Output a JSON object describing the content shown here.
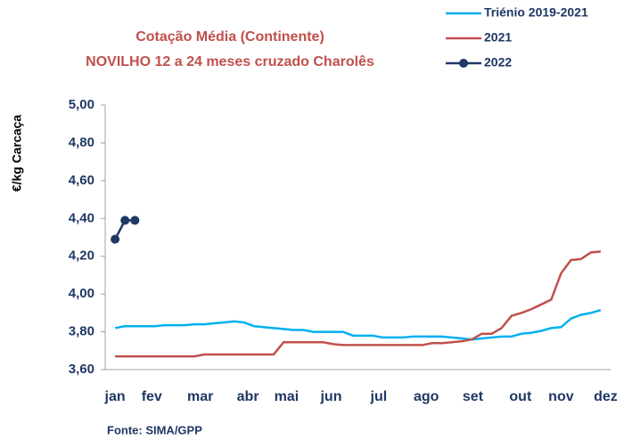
{
  "chart_data": {
    "type": "line",
    "title": "Cotação Média (Continente)",
    "subtitle": "NOVILHO 12 a 24 meses cruzado Charolês",
    "y_label": "€/kg Carcaça",
    "source": "Fonte:  SIMA/GPP",
    "xlim": [
      0,
      51
    ],
    "xticks": [
      {
        "value": 1,
        "label": "jan"
      },
      {
        "value": 4.7,
        "label": "fev"
      },
      {
        "value": 9.6,
        "label": "mar"
      },
      {
        "value": 14.4,
        "label": "abr"
      },
      {
        "value": 18.3,
        "label": "mai"
      },
      {
        "value": 22.8,
        "label": "jun"
      },
      {
        "value": 27.6,
        "label": "jul"
      },
      {
        "value": 32.4,
        "label": "ago"
      },
      {
        "value": 37.1,
        "label": "set"
      },
      {
        "value": 41.9,
        "label": "out"
      },
      {
        "value": 46,
        "label": "nov"
      },
      {
        "value": 50.5,
        "label": "dez"
      }
    ],
    "ylim": [
      3.6,
      5.0
    ],
    "yticks": [
      {
        "value": 3.6,
        "label": "3,60"
      },
      {
        "value": 3.8,
        "label": "3,80"
      },
      {
        "value": 4.0,
        "label": "4,00"
      },
      {
        "value": 4.2,
        "label": "4,20"
      },
      {
        "value": 4.4,
        "label": "4,40"
      },
      {
        "value": 4.6,
        "label": "4,60"
      },
      {
        "value": 4.8,
        "label": "4,80"
      },
      {
        "value": 5.0,
        "label": "5,00"
      }
    ],
    "legend": "top-right",
    "series": [
      {
        "name": "Triénio 2019-2021",
        "color": "#00b0f0",
        "markers": false,
        "x": [
          1,
          2,
          3,
          4,
          5,
          6,
          7,
          8,
          9,
          10,
          11,
          12,
          13,
          14,
          15,
          16,
          17,
          18,
          19,
          20,
          21,
          22,
          23,
          24,
          25,
          26,
          27,
          28,
          29,
          30,
          31,
          32,
          33,
          34,
          35,
          36,
          37,
          38,
          39,
          40,
          41,
          42,
          43,
          44,
          45,
          46,
          47,
          48,
          49,
          50
        ],
        "values": [
          3.82,
          3.83,
          3.83,
          3.83,
          3.83,
          3.835,
          3.835,
          3.835,
          3.84,
          3.84,
          3.845,
          3.85,
          3.855,
          3.85,
          3.83,
          3.825,
          3.82,
          3.815,
          3.81,
          3.81,
          3.8,
          3.8,
          3.8,
          3.8,
          3.78,
          3.78,
          3.78,
          3.77,
          3.77,
          3.77,
          3.775,
          3.775,
          3.775,
          3.775,
          3.77,
          3.765,
          3.76,
          3.765,
          3.77,
          3.775,
          3.775,
          3.79,
          3.795,
          3.805,
          3.82,
          3.825,
          3.87,
          3.89,
          3.9,
          3.915
        ]
      },
      {
        "name": "2021",
        "color": "#c0504d",
        "markers": false,
        "x": [
          1,
          2,
          3,
          4,
          5,
          6,
          7,
          8,
          9,
          10,
          11,
          12,
          13,
          14,
          15,
          16,
          17,
          18,
          19,
          20,
          21,
          22,
          23,
          24,
          25,
          26,
          27,
          28,
          29,
          30,
          31,
          32,
          33,
          34,
          35,
          36,
          37,
          38,
          39,
          40,
          41,
          42,
          43,
          44,
          45,
          46,
          47,
          48,
          49,
          50
        ],
        "values": [
          3.67,
          3.67,
          3.67,
          3.67,
          3.67,
          3.67,
          3.67,
          3.67,
          3.67,
          3.68,
          3.68,
          3.68,
          3.68,
          3.68,
          3.68,
          3.68,
          3.68,
          3.745,
          3.745,
          3.745,
          3.745,
          3.745,
          3.735,
          3.73,
          3.73,
          3.73,
          3.73,
          3.73,
          3.73,
          3.73,
          3.73,
          3.73,
          3.74,
          3.74,
          3.745,
          3.75,
          3.76,
          3.79,
          3.79,
          3.82,
          3.885,
          3.9,
          3.92,
          3.945,
          3.97,
          4.11,
          4.18,
          4.185,
          4.22,
          4.225
        ]
      },
      {
        "name": "2022",
        "color": "#1f3864",
        "markers": true,
        "x": [
          1,
          2,
          3
        ],
        "values": [
          4.29,
          4.39,
          4.39
        ]
      }
    ]
  }
}
